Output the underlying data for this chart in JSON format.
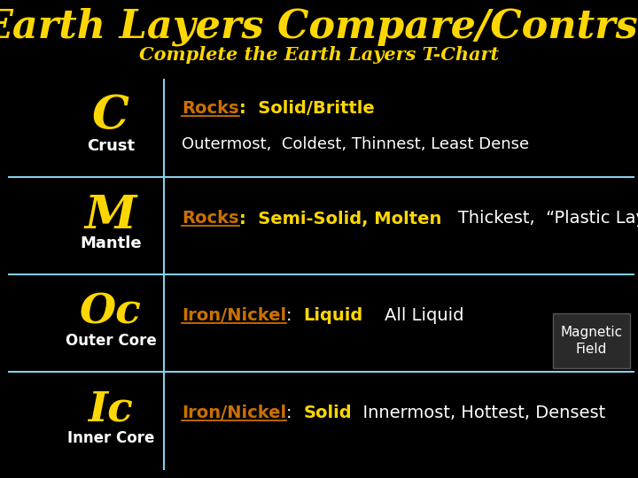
{
  "title": "Earth Layers Compare/Contrst",
  "subtitle": "Complete the Earth Layers T-Chart",
  "bg_color": "#000000",
  "title_color": "#FFD700",
  "subtitle_color": "#FFD700",
  "divider_color": "#87CEEB",
  "rows": [
    {
      "letter": "C",
      "label": "Crust",
      "letter_size": 38,
      "label_size": 13,
      "line1_parts": [
        {
          "text": "Rocks",
          "color": "#CC7000",
          "underline": true,
          "bold": true,
          "size": 14
        },
        {
          "text": ":  Solid/Brittle",
          "color": "#FFD700",
          "underline": false,
          "bold": true,
          "size": 14
        }
      ],
      "line2": "Outermost,  Coldest, Thinnest, Least Dense",
      "line2_color": "#FFFFFF",
      "line2_size": 13
    },
    {
      "letter": "M",
      "label": "Mantle",
      "letter_size": 38,
      "label_size": 13,
      "line1_parts": [
        {
          "text": "Rocks",
          "color": "#CC7000",
          "underline": true,
          "bold": true,
          "size": 14
        },
        {
          "text": ":  Semi-Solid, Molten",
          "color": "#FFD700",
          "underline": false,
          "bold": true,
          "size": 14
        },
        {
          "text": "   Thickest,  “Plastic Layer”",
          "color": "#FFFFFF",
          "underline": false,
          "bold": false,
          "size": 14
        }
      ],
      "line2": null,
      "line2_color": "#FFFFFF",
      "line2_size": 13
    },
    {
      "letter": "Oc",
      "label": "Outer Core",
      "letter_size": 34,
      "label_size": 12,
      "line1_parts": [
        {
          "text": "Iron/Nickel",
          "color": "#CC7000",
          "underline": true,
          "bold": true,
          "size": 14
        },
        {
          "text": ":  ",
          "color": "#FFFFFF",
          "underline": false,
          "bold": false,
          "size": 14
        },
        {
          "text": "Liquid",
          "color": "#FFD700",
          "underline": false,
          "bold": true,
          "size": 14
        },
        {
          "text": "    All Liquid",
          "color": "#FFFFFF",
          "underline": false,
          "bold": false,
          "size": 14
        }
      ],
      "line2": null,
      "line2_color": "#FFFFFF",
      "line2_size": 13,
      "magnetic_field": true
    },
    {
      "letter": "Ic",
      "label": "Inner Core",
      "letter_size": 34,
      "label_size": 12,
      "line1_parts": [
        {
          "text": "Iron/Nickel",
          "color": "#CC7000",
          "underline": true,
          "bold": true,
          "size": 14
        },
        {
          "text": ":  ",
          "color": "#FFFFFF",
          "underline": false,
          "bold": false,
          "size": 14
        },
        {
          "text": "Solid",
          "color": "#FFD700",
          "underline": false,
          "bold": true,
          "size": 14
        },
        {
          "text": "  Innermost, Hottest, Densest",
          "color": "#FFFFFF",
          "underline": false,
          "bold": false,
          "size": 14
        }
      ],
      "line2": null,
      "line2_color": "#FFFFFF",
      "line2_size": 13
    }
  ]
}
